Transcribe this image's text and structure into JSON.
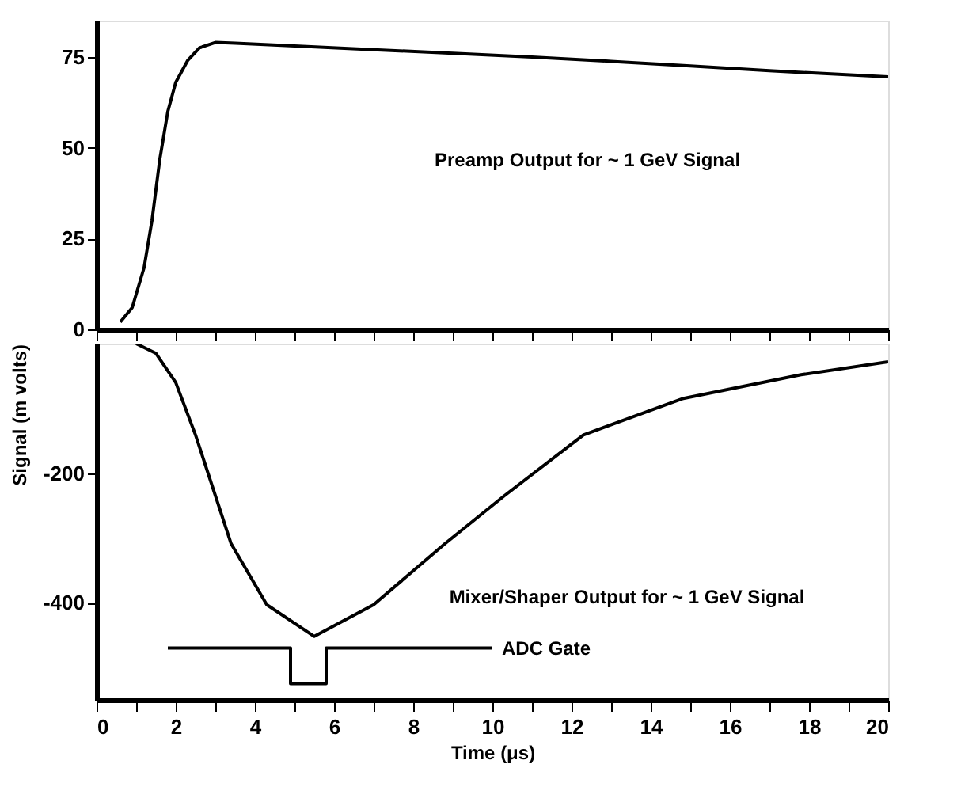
{
  "chart_data": [
    {
      "type": "line",
      "xlim": [
        0,
        20
      ],
      "ylim": [
        0,
        85
      ],
      "yticks": [
        0,
        25,
        50,
        75
      ],
      "xticks": [
        {
          "value": 0,
          "label": null
        },
        {
          "value": 1,
          "label": null
        },
        {
          "value": 2,
          "label": null
        },
        {
          "value": 3,
          "label": null
        },
        {
          "value": 4,
          "label": null
        },
        {
          "value": 5,
          "label": null
        },
        {
          "value": 6,
          "label": null
        },
        {
          "value": 7,
          "label": null
        },
        {
          "value": 8,
          "label": null
        },
        {
          "value": 9,
          "label": null
        },
        {
          "value": 10,
          "label": null
        },
        {
          "value": 11,
          "label": null
        },
        {
          "value": 12,
          "label": null
        },
        {
          "value": 13,
          "label": null
        },
        {
          "value": 14,
          "label": null
        },
        {
          "value": 15,
          "label": null
        },
        {
          "value": 16,
          "label": null
        },
        {
          "value": 17,
          "label": null
        },
        {
          "value": 18,
          "label": null
        },
        {
          "value": 19,
          "label": null
        },
        {
          "value": 20,
          "label": null
        }
      ],
      "tick_labels": "y",
      "grid": false,
      "annotations": [
        "Preamp Output for ~ 1 GeV Signal"
      ],
      "series": [
        {
          "color": "#000000",
          "x": [
            0.6,
            0.9,
            1.2,
            1.4,
            1.6,
            1.8,
            2.0,
            2.3,
            2.6,
            3.0,
            3.5,
            5,
            7,
            9,
            11,
            13,
            15,
            17,
            20
          ],
          "values": [
            2,
            6,
            17,
            30,
            47,
            60,
            68,
            74,
            77.5,
            79,
            78.8,
            78,
            77,
            76,
            75,
            73.8,
            72.5,
            71.2,
            69.5
          ]
        }
      ]
    },
    {
      "type": "line",
      "xlim": [
        0,
        20
      ],
      "ylim": [
        -550,
        0
      ],
      "yticks": [
        -200,
        -400
      ],
      "xticks": [
        0,
        {
          "value": 1,
          "label": null
        },
        2,
        {
          "value": 3,
          "label": null
        },
        4,
        {
          "value": 5,
          "label": null
        },
        6,
        {
          "value": 7,
          "label": null
        },
        8,
        {
          "value": 9,
          "label": null
        },
        10,
        {
          "value": 11,
          "label": null
        },
        12,
        {
          "value": 13,
          "label": null
        },
        14,
        {
          "value": 15,
          "label": null
        },
        16,
        {
          "value": 17,
          "label": null
        },
        18,
        {
          "value": 19,
          "label": null
        },
        20
      ],
      "xlabel": "Time (μs)",
      "ylabel": "Signal (m volts)",
      "grid": false,
      "annotations": [
        "Mixer/Shaper Output for ~ 1 GeV Signal"
      ],
      "series": [
        {
          "color": "#000000",
          "x": [
            1.0,
            1.5,
            2.0,
            2.5,
            3.4,
            4.3,
            5.5,
            7.0,
            8.8,
            10.3,
            12.3,
            14.8,
            17.8,
            20
          ],
          "values": [
            0,
            -15,
            -60,
            -141,
            -309,
            -403,
            -452,
            -403,
            -309,
            -235,
            -141,
            -85,
            -48,
            -28
          ]
        },
        {
          "name": "ADC Gate",
          "color": "#000000",
          "x": [
            1.8,
            4.9,
            4.9,
            5.8,
            5.8,
            10
          ],
          "values": [
            -470,
            -470,
            -525,
            -525,
            -470,
            -470
          ]
        }
      ]
    }
  ]
}
